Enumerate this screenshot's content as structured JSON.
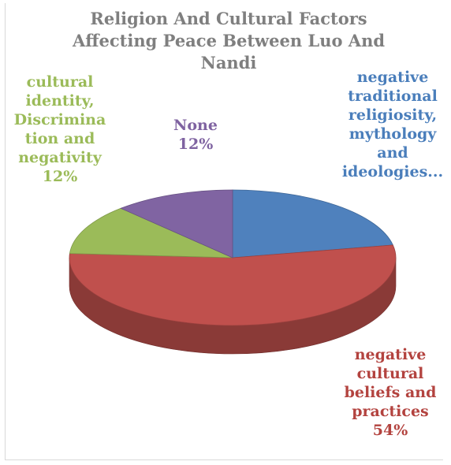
{
  "chart_data": {
    "type": "pie",
    "title": "Religion And Cultural Factors Affecting Peace Between Luo And Nandi",
    "slices": [
      {
        "label": "negative traditional religiosity, mythology and ideologies...",
        "value": 22,
        "value_label": "",
        "color": "#4f81bd"
      },
      {
        "label": "negative cultural beliefs and practices",
        "value": 54,
        "value_label": "54%",
        "color": "#c0504d"
      },
      {
        "label": "cultural identity, Discrimination and negativity",
        "value": 12,
        "value_label": "12%",
        "color": "#9bbb59"
      },
      {
        "label": "None",
        "value": 12,
        "value_label": "12%",
        "color": "#8064a2"
      }
    ]
  },
  "display": {
    "title_lines": [
      "Religion And Cultural Factors",
      "Affecting Peace Between Luo And",
      "Nandi"
    ],
    "label_lines": [
      [
        "negative",
        "traditional",
        "religiosity,",
        "mythology",
        "and",
        "ideologies..."
      ],
      [
        "negative",
        "cultural",
        "beliefs and",
        "practices",
        "54%"
      ],
      [
        "cultural",
        "identity,",
        "Discrimina",
        "tion and",
        "negativity",
        "12%"
      ],
      [
        "None",
        "12%"
      ]
    ]
  }
}
